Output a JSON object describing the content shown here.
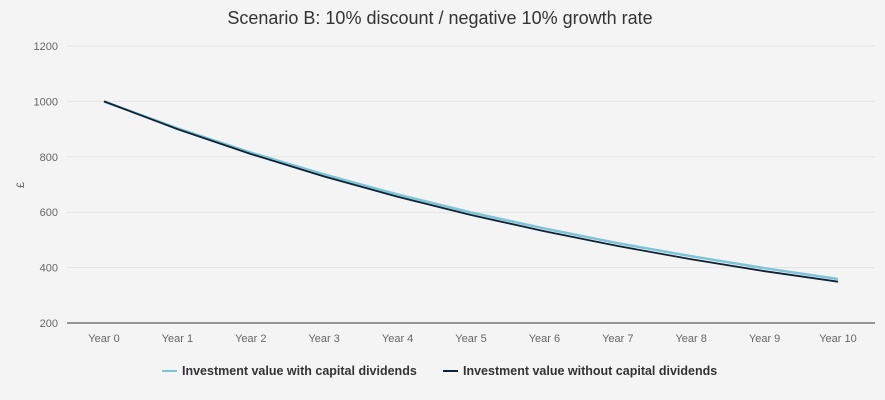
{
  "chart_data": {
    "type": "line",
    "title": "Scenario B: 10% discount / negative 10% growth rate",
    "xlabel": "",
    "ylabel": "£",
    "categories": [
      "Year 0",
      "Year 1",
      "Year 2",
      "Year 3",
      "Year 4",
      "Year 5",
      "Year 6",
      "Year 7",
      "Year 8",
      "Year 9",
      "Year 10"
    ],
    "ylim": [
      200,
      1200
    ],
    "yticks": [
      1200,
      1000,
      800,
      600,
      400,
      200
    ],
    "grid": true,
    "legend_position": "bottom",
    "series": [
      {
        "name": "Investment value with capital dividends",
        "color": "#7cc4d8",
        "values": [
          1000,
          903,
          815,
          736,
          664,
          599,
          541,
          488,
          441,
          398,
          359
        ]
      },
      {
        "name": "Investment value without capital dividends",
        "color": "#0f2233",
        "values": [
          1000,
          900,
          810,
          729,
          656,
          590,
          531,
          478,
          430,
          387,
          349
        ]
      }
    ]
  }
}
